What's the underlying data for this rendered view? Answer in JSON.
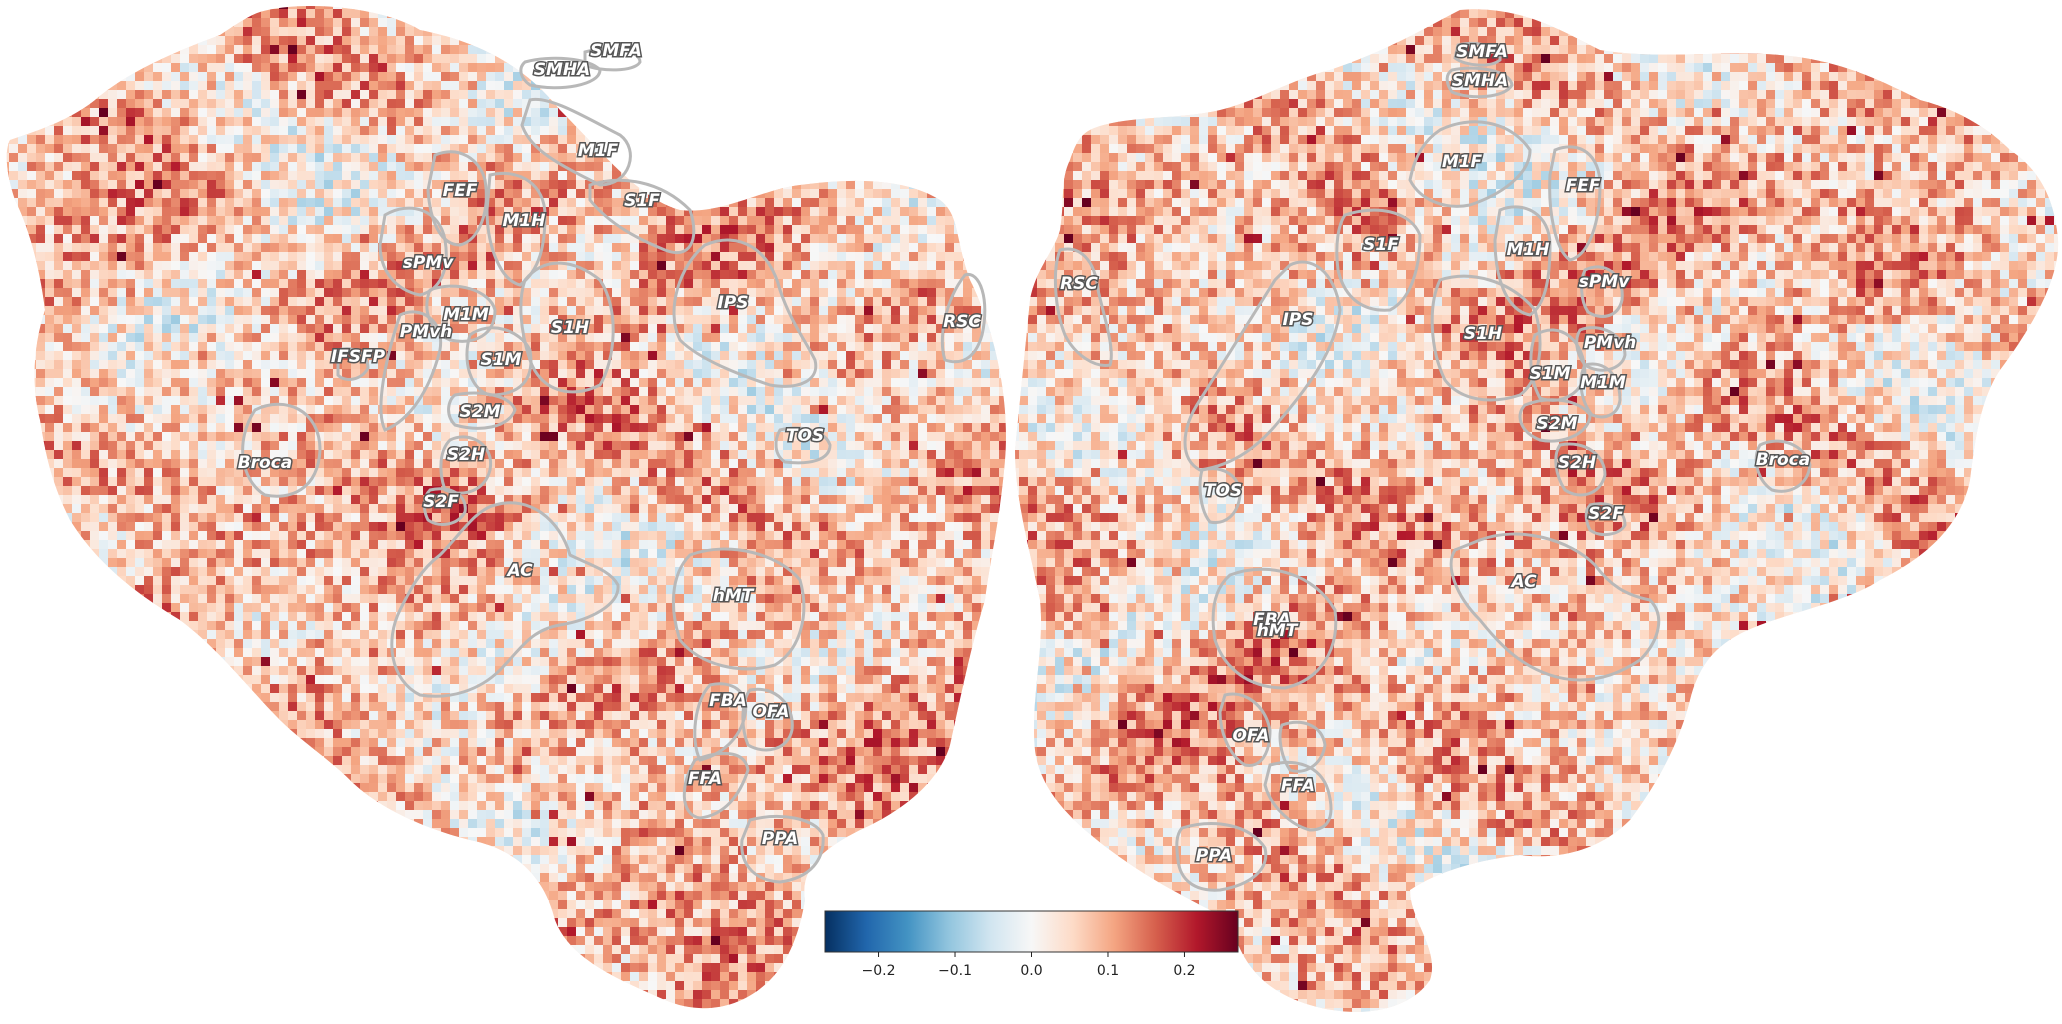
{
  "figure": {
    "colormap": "RdBu_r",
    "colormap_stops": [
      "#053061",
      "#2166ac",
      "#4393c3",
      "#92c5de",
      "#d1e5f0",
      "#f7f7f7",
      "#fddbc7",
      "#f4a582",
      "#d6604d",
      "#b2182b",
      "#67001f"
    ],
    "background": "#ffffff",
    "roi_outline_color": "#b8b8b8"
  },
  "colorbar": {
    "range": [
      -0.27,
      0.27
    ],
    "ticks": [
      {
        "value": -0.2,
        "label": "−0.2"
      },
      {
        "value": -0.1,
        "label": "−0.1"
      },
      {
        "value": 0.0,
        "label": "0.0"
      },
      {
        "value": 0.1,
        "label": "0.1"
      },
      {
        "value": 0.2,
        "label": "0.2"
      }
    ]
  },
  "left_hemisphere": {
    "roi_labels": [
      "SMFA",
      "SMHA",
      "M1F",
      "S1F",
      "FEF",
      "M1H",
      "sPMv",
      "M1M",
      "PMvh",
      "S1H",
      "S1M",
      "IPS",
      "RSC",
      "IFSFP",
      "S2M",
      "S2H",
      "Broca",
      "S2F",
      "TOS",
      "AC",
      "hMT",
      "FBA",
      "OFA",
      "FFA",
      "PPA"
    ]
  },
  "right_hemisphere": {
    "roi_labels": [
      "SMFA",
      "SMHA",
      "M1F",
      "FEF",
      "S1F",
      "M1H",
      "RSC",
      "IPS",
      "sPMv",
      "S1H",
      "PMvh",
      "S1M",
      "M1M",
      "S2M",
      "S2H",
      "Broca",
      "S2F",
      "TOS",
      "AC",
      "FBA",
      "hMT",
      "OFA",
      "FFA",
      "PPA"
    ]
  }
}
